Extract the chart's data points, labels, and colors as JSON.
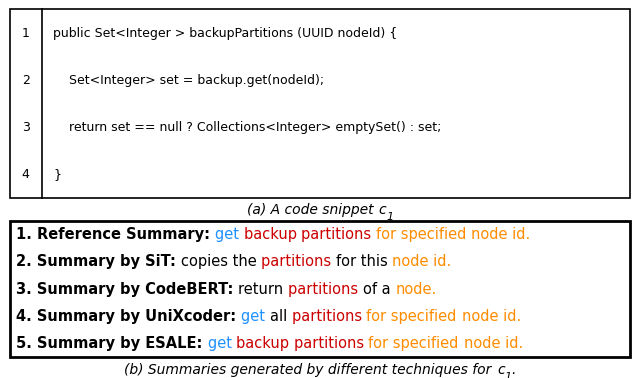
{
  "code_lines": [
    {
      "num": "1",
      "text": "public Set<Integer > backupPartitions (UUID nodeId) {"
    },
    {
      "num": "2",
      "text": "    Set<Integer> set = backup.get(nodeId);"
    },
    {
      "num": "3",
      "text": "    return set == null ? Collections<Integer> emptySet() : set;"
    },
    {
      "num": "4",
      "text": "}"
    }
  ],
  "caption_a_prefix": "(a) A code snippet ",
  "caption_b_prefix": "(b) Summaries generated by different techniques for ",
  "summaries": [
    {
      "label": "1. Reference Summary: ",
      "segments": [
        {
          "text": "get ",
          "color": "#1e90ff"
        },
        {
          "text": "backup ",
          "color": "#cc0000"
        },
        {
          "text": "partitions ",
          "color": "#cc0000"
        },
        {
          "text": "for specified ",
          "color": "#ff8c00"
        },
        {
          "text": "node id.",
          "color": "#ff8c00"
        }
      ]
    },
    {
      "label": "2. Summary by SiT: ",
      "segments": [
        {
          "text": "copies the ",
          "color": "#000000"
        },
        {
          "text": "partitions ",
          "color": "#cc0000"
        },
        {
          "text": "for this ",
          "color": "#000000"
        },
        {
          "text": "node id.",
          "color": "#ff8c00"
        }
      ]
    },
    {
      "label": "3. Summary by CodeBERT: ",
      "segments": [
        {
          "text": "return ",
          "color": "#000000"
        },
        {
          "text": "partitions ",
          "color": "#cc0000"
        },
        {
          "text": "of a ",
          "color": "#000000"
        },
        {
          "text": "node.",
          "color": "#ff8c00"
        }
      ]
    },
    {
      "label": "4. Summary by UniXcoder: ",
      "segments": [
        {
          "text": "get ",
          "color": "#1e90ff"
        },
        {
          "text": "all ",
          "color": "#000000"
        },
        {
          "text": "partitions ",
          "color": "#cc0000"
        },
        {
          "text": "for specified ",
          "color": "#ff8c00"
        },
        {
          "text": "node id.",
          "color": "#ff8c00"
        }
      ]
    },
    {
      "label": "5. Summary by ESALE: ",
      "segments": [
        {
          "text": "get ",
          "color": "#1e90ff"
        },
        {
          "text": "backup ",
          "color": "#cc0000"
        },
        {
          "text": "partitions ",
          "color": "#cc0000"
        },
        {
          "text": "for specified ",
          "color": "#ff8c00"
        },
        {
          "text": "node id.",
          "color": "#ff8c00"
        }
      ]
    }
  ],
  "code_fontsize": 9.0,
  "summary_label_fontsize": 10.5,
  "summary_text_fontsize": 10.5,
  "caption_fontsize": 10.0,
  "linenum_color": "#000000",
  "code_text_color": "#000000",
  "bg_color": "#ffffff"
}
